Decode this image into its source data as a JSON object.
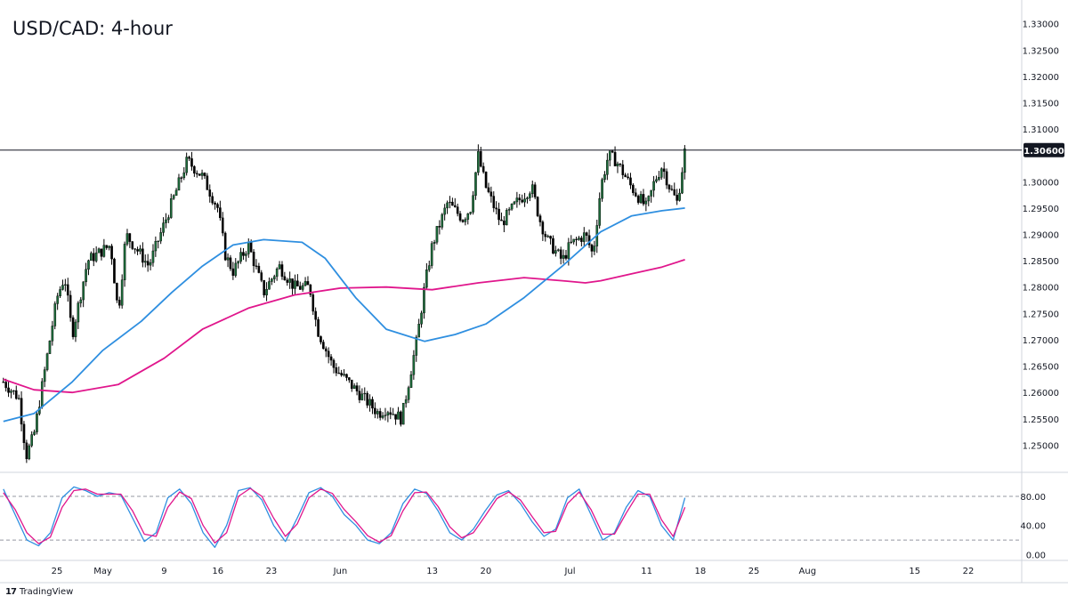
{
  "chart_data": {
    "type": "candlestick",
    "title": "USD/CAD: 4-hour",
    "x_tick_labels": [
      "25",
      "May",
      "9",
      "16",
      "23",
      "Jun",
      "13",
      "20",
      "Jul",
      "11",
      "18",
      "25",
      "Aug",
      "15",
      "22"
    ],
    "x_tick_labels_note": "last label partly cut off at right edge",
    "y_range": [
      1.245,
      1.3345
    ],
    "y_tick_labels": [
      "1.33000",
      "1.32500",
      "1.32000",
      "1.31500",
      "1.31000",
      "1.30600",
      "1.30000",
      "1.29500",
      "1.29000",
      "1.28500",
      "1.28000",
      "1.27500",
      "1.27000",
      "1.26500",
      "1.26000",
      "1.25500",
      "1.25000"
    ],
    "resistance_level": 1.306,
    "resistance_label": "1.30600",
    "price_trend": [
      {
        "date": "Apr 18",
        "close": 1.262
      },
      {
        "date": "Apr 20",
        "close": 1.259
      },
      {
        "date": "Apr 21",
        "close": 1.248
      },
      {
        "date": "Apr 22",
        "close": 1.252
      },
      {
        "date": "Apr 25",
        "close": 1.278
      },
      {
        "date": "Apr 26",
        "close": 1.282
      },
      {
        "date": "Apr 27",
        "close": 1.271
      },
      {
        "date": "Apr 29",
        "close": 1.285
      },
      {
        "date": "May 2",
        "close": 1.288
      },
      {
        "date": "May 3",
        "close": 1.275
      },
      {
        "date": "May 4",
        "close": 1.29
      },
      {
        "date": "May 6",
        "close": 1.286
      },
      {
        "date": "May 7",
        "close": 1.284
      },
      {
        "date": "May 10",
        "close": 1.296
      },
      {
        "date": "May 12",
        "close": 1.304
      },
      {
        "date": "May 14",
        "close": 1.301
      },
      {
        "date": "May 16",
        "close": 1.295
      },
      {
        "date": "May 17",
        "close": 1.286
      },
      {
        "date": "May 18",
        "close": 1.283
      },
      {
        "date": "May 20",
        "close": 1.288
      },
      {
        "date": "May 22",
        "close": 1.279
      },
      {
        "date": "May 24",
        "close": 1.284
      },
      {
        "date": "May 26",
        "close": 1.28
      },
      {
        "date": "May 28",
        "close": 1.28
      },
      {
        "date": "May 29",
        "close": 1.272
      },
      {
        "date": "May 31",
        "close": 1.265
      },
      {
        "date": "Jun 2",
        "close": 1.262
      },
      {
        "date": "Jun 4",
        "close": 1.259
      },
      {
        "date": "Jun 6",
        "close": 1.256
      },
      {
        "date": "Jun 7",
        "close": 1.257
      },
      {
        "date": "Jun 8",
        "close": 1.256
      },
      {
        "date": "Jun 9",
        "close": 1.255
      },
      {
        "date": "Jun 11",
        "close": 1.27
      },
      {
        "date": "Jun 12",
        "close": 1.28
      },
      {
        "date": "Jun 13",
        "close": 1.288
      },
      {
        "date": "Jun 15",
        "close": 1.296
      },
      {
        "date": "Jun 17",
        "close": 1.293
      },
      {
        "date": "Jun 18",
        "close": 1.295
      },
      {
        "date": "Jun 19",
        "close": 1.305
      },
      {
        "date": "Jun 20",
        "close": 1.299
      },
      {
        "date": "Jun 22",
        "close": 1.292
      },
      {
        "date": "Jun 24",
        "close": 1.296
      },
      {
        "date": "Jun 26",
        "close": 1.299
      },
      {
        "date": "Jun 27",
        "close": 1.293
      },
      {
        "date": "Jun 28",
        "close": 1.289
      },
      {
        "date": "Jun 30",
        "close": 1.285
      },
      {
        "date": "Jul 1",
        "close": 1.288
      },
      {
        "date": "Jul 3",
        "close": 1.29
      },
      {
        "date": "Jul 4",
        "close": 1.286
      },
      {
        "date": "Jul 5",
        "close": 1.299
      },
      {
        "date": "Jul 6",
        "close": 1.305
      },
      {
        "date": "Jul 7",
        "close": 1.304
      },
      {
        "date": "Jul 9",
        "close": 1.299
      },
      {
        "date": "Jul 11",
        "close": 1.295
      },
      {
        "date": "Jul 12",
        "close": 1.3
      },
      {
        "date": "Jul 13",
        "close": 1.303
      },
      {
        "date": "Jul 14",
        "close": 1.299
      },
      {
        "date": "Jul 15",
        "close": 1.296
      },
      {
        "date": "Jul 16",
        "close": 1.306
      }
    ],
    "ma_fast": {
      "color": "#2f8fe0",
      "points": [
        {
          "date": "Apr 18",
          "value": 1.2545
        },
        {
          "date": "Apr 22",
          "value": 1.256
        },
        {
          "date": "Apr 27",
          "value": 1.262
        },
        {
          "date": "May 1",
          "value": 1.268
        },
        {
          "date": "May 6",
          "value": 1.2735
        },
        {
          "date": "May 10",
          "value": 1.279
        },
        {
          "date": "May 14",
          "value": 1.284
        },
        {
          "date": "May 18",
          "value": 1.288
        },
        {
          "date": "May 22",
          "value": 1.289
        },
        {
          "date": "May 27",
          "value": 1.2885
        },
        {
          "date": "May 30",
          "value": 1.2855
        },
        {
          "date": "Jun 3",
          "value": 1.278
        },
        {
          "date": "Jun 7",
          "value": 1.272
        },
        {
          "date": "Jun 12",
          "value": 1.2697
        },
        {
          "date": "Jun 16",
          "value": 1.271
        },
        {
          "date": "Jun 20",
          "value": 1.273
        },
        {
          "date": "Jun 25",
          "value": 1.278
        },
        {
          "date": "Jun 30",
          "value": 1.284
        },
        {
          "date": "Jul 5",
          "value": 1.2905
        },
        {
          "date": "Jul 9",
          "value": 1.2935
        },
        {
          "date": "Jul 13",
          "value": 1.2945
        },
        {
          "date": "Jul 16",
          "value": 1.295
        }
      ]
    },
    "ma_slow": {
      "color": "#e0168c",
      "points": [
        {
          "date": "Apr 18",
          "value": 1.2625
        },
        {
          "date": "Apr 22",
          "value": 1.2605
        },
        {
          "date": "Apr 27",
          "value": 1.26
        },
        {
          "date": "May 3",
          "value": 1.2615
        },
        {
          "date": "May 9",
          "value": 1.2665
        },
        {
          "date": "May 14",
          "value": 1.272
        },
        {
          "date": "May 20",
          "value": 1.276
        },
        {
          "date": "May 26",
          "value": 1.2785
        },
        {
          "date": "Jun 1",
          "value": 1.2798
        },
        {
          "date": "Jun 7",
          "value": 1.28
        },
        {
          "date": "Jun 13",
          "value": 1.2795
        },
        {
          "date": "Jun 19",
          "value": 1.2808
        },
        {
          "date": "Jun 25",
          "value": 1.2818
        },
        {
          "date": "Jun 30",
          "value": 1.2812
        },
        {
          "date": "Jul 3",
          "value": 1.2808
        },
        {
          "date": "Jul 5",
          "value": 1.2812
        },
        {
          "date": "Jul 9",
          "value": 1.2825
        },
        {
          "date": "Jul 13",
          "value": 1.2838
        },
        {
          "date": "Jul 16",
          "value": 1.2852
        }
      ]
    },
    "oscillator": {
      "y_range": [
        -8,
        113
      ],
      "y_tick_labels": [
        "80.00",
        "40.00",
        "0.00"
      ],
      "levels": [
        80,
        20
      ],
      "k_line": {
        "color": "#2f8fe0",
        "values": [
          90,
          55,
          20,
          12,
          30,
          78,
          93,
          88,
          80,
          85,
          82,
          50,
          18,
          30,
          78,
          90,
          70,
          30,
          10,
          40,
          88,
          92,
          75,
          40,
          18,
          50,
          85,
          92,
          80,
          55,
          40,
          20,
          15,
          30,
          70,
          90,
          84,
          60,
          30,
          20,
          35,
          60,
          82,
          88,
          70,
          45,
          25,
          35,
          78,
          90,
          55,
          20,
          30,
          65,
          88,
          80,
          40,
          20,
          78
        ]
      },
      "d_line": {
        "color": "#e0168c",
        "values": [
          85,
          62,
          30,
          15,
          24,
          65,
          88,
          90,
          83,
          83,
          83,
          60,
          28,
          25,
          65,
          86,
          77,
          40,
          16,
          30,
          80,
          91,
          80,
          50,
          25,
          42,
          78,
          90,
          84,
          62,
          45,
          26,
          17,
          26,
          60,
          85,
          86,
          66,
          38,
          23,
          30,
          53,
          77,
          86,
          75,
          52,
          30,
          32,
          70,
          86,
          62,
          28,
          28,
          57,
          83,
          83,
          48,
          25,
          65
        ]
      }
    },
    "grid": false,
    "legend": "none"
  },
  "footer": {
    "brand": "TradingView",
    "logo_glyph": "17"
  }
}
